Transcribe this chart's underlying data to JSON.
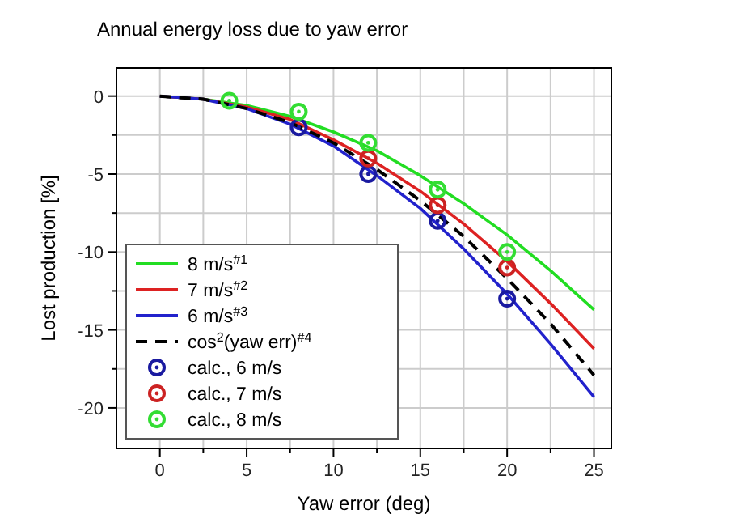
{
  "chart_data": {
    "type": "line",
    "title": "Annual energy loss due to yaw error",
    "xlabel": "Yaw error (deg)",
    "ylabel": "Lost production [%]",
    "xlim": [
      -2.5,
      26
    ],
    "ylim": [
      -22.6,
      1.8
    ],
    "xticks": [
      0,
      {
        "value": 2.5,
        "label": null
      },
      5,
      {
        "value": 7.5,
        "label": null
      },
      10,
      {
        "value": 12.5,
        "label": null
      },
      15,
      {
        "value": 17.5,
        "label": null
      },
      20,
      {
        "value": 22.5,
        "label": null
      },
      25
    ],
    "yticks": [
      {
        "value": -20,
        "label": "-20"
      },
      {
        "value": -17.5,
        "label": null
      },
      {
        "value": -15,
        "label": "-15"
      },
      {
        "value": -12.5,
        "label": null
      },
      {
        "value": -10,
        "label": "-10"
      },
      {
        "value": -7.5,
        "label": null
      },
      {
        "value": -5,
        "label": "-5"
      },
      {
        "value": -2.5,
        "label": null
      },
      0
    ],
    "grid": true,
    "legend": "bottom left",
    "series": [
      {
        "name": "8 m/s$^{#1}$",
        "color": "#22dd22",
        "line_style": "solid",
        "x": [
          0,
          2.5,
          5,
          7.5,
          10,
          12.5,
          15,
          17.5,
          20,
          22.5,
          25
        ],
        "values": [
          0,
          -0.2,
          -0.6,
          -1.3,
          -2.3,
          -3.5,
          -5.1,
          -6.9,
          -8.9,
          -11.2,
          -13.7
        ]
      },
      {
        "name": "7 m/s$^{#2}$",
        "color": "#dd2222",
        "line_style": "solid",
        "x": [
          0,
          2.5,
          5,
          7.5,
          10,
          12.5,
          15,
          17.5,
          20,
          22.5,
          25
        ],
        "values": [
          0,
          -0.2,
          -0.7,
          -1.5,
          -2.8,
          -4.3,
          -6.1,
          -8.2,
          -10.6,
          -13.3,
          -16.2
        ]
      },
      {
        "name": "6 m/s$^{#3}$",
        "color": "#2222cc",
        "line_style": "solid",
        "x": [
          0,
          2.5,
          5,
          7.5,
          10,
          12.5,
          15,
          17.5,
          20,
          22.5,
          25
        ],
        "values": [
          0,
          -0.2,
          -0.8,
          -1.8,
          -3.2,
          -5.1,
          -7.2,
          -9.8,
          -12.7,
          -15.9,
          -19.3
        ]
      },
      {
        "name": "cos$^{2}$(yaw err)$^{#4}$",
        "color": "#000000",
        "line_style": "dashed",
        "x": [
          0,
          2.5,
          5,
          7.5,
          10,
          12.5,
          15,
          17.5,
          20,
          22.5,
          25
        ],
        "values": [
          0,
          -0.2,
          -0.8,
          -1.7,
          -3.0,
          -4.7,
          -6.7,
          -9.0,
          -11.7,
          -14.6,
          -17.9
        ]
      },
      {
        "name": "calc., 6 m/s",
        "type": "scatter",
        "marker": "circle",
        "color": "#1a1aa0",
        "x": [
          8,
          12,
          16,
          20
        ],
        "values": [
          -2,
          -5,
          -8,
          -13
        ]
      },
      {
        "name": "calc., 7 m/s",
        "type": "scatter",
        "marker": "circle",
        "color": "#cc2222",
        "x": [
          12,
          16,
          20
        ],
        "values": [
          -4,
          -7,
          -11
        ]
      },
      {
        "name": "calc., 8 m/s",
        "type": "scatter",
        "marker": "circle",
        "color": "#33dd33",
        "x": [
          4,
          8,
          12,
          16,
          20
        ],
        "values": [
          -0.3,
          -1,
          -3,
          -6,
          -10
        ]
      }
    ]
  }
}
